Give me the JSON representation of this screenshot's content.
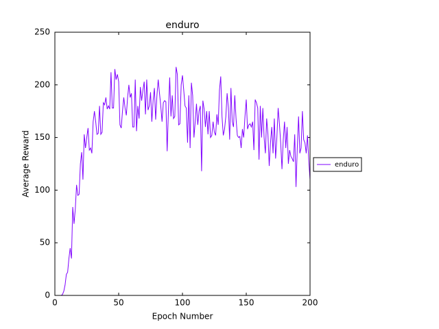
{
  "chart_data": {
    "type": "line",
    "title": "enduro",
    "x_label": "Epoch Number",
    "y_label": "Average Reward",
    "x": [
      0,
      1,
      2,
      3,
      4,
      5,
      6,
      7,
      8,
      9,
      10,
      11,
      12,
      13,
      14,
      15,
      16,
      17,
      18,
      19,
      20,
      21,
      22,
      23,
      24,
      25,
      26,
      27,
      28,
      29,
      30,
      31,
      32,
      33,
      34,
      35,
      36,
      37,
      38,
      39,
      40,
      41,
      42,
      43,
      44,
      45,
      46,
      47,
      48,
      49,
      50,
      51,
      52,
      53,
      54,
      55,
      56,
      57,
      58,
      59,
      60,
      61,
      62,
      63,
      64,
      65,
      66,
      67,
      68,
      69,
      70,
      71,
      72,
      73,
      74,
      75,
      76,
      77,
      78,
      79,
      80,
      81,
      82,
      83,
      84,
      85,
      86,
      87,
      88,
      89,
      90,
      91,
      92,
      93,
      94,
      95,
      96,
      97,
      98,
      99,
      100,
      101,
      102,
      103,
      104,
      105,
      106,
      107,
      108,
      109,
      110,
      111,
      112,
      113,
      114,
      115,
      116,
      117,
      118,
      119,
      120,
      121,
      122,
      123,
      124,
      125,
      126,
      127,
      128,
      129,
      130,
      131,
      132,
      133,
      134,
      135,
      136,
      137,
      138,
      139,
      140,
      141,
      142,
      143,
      144,
      145,
      146,
      147,
      148,
      149,
      150,
      151,
      152,
      153,
      154,
      155,
      156,
      157,
      158,
      159,
      160,
      161,
      162,
      163,
      164,
      165,
      166,
      167,
      168,
      169,
      170,
      171,
      172,
      173,
      174,
      175,
      176,
      177,
      178,
      179,
      180,
      181,
      182,
      183,
      184,
      185,
      186,
      187,
      188,
      189,
      190,
      191,
      192,
      193,
      194,
      195,
      196,
      197,
      198,
      199,
      200
    ],
    "series": [
      {
        "name": "enduro",
        "color": "#7f00ff",
        "values": [
          0,
          0,
          0,
          0,
          0,
          0,
          1,
          4,
          10,
          20,
          22,
          35,
          45,
          35,
          84,
          68,
          82,
          105,
          95,
          96,
          125,
          136,
          110,
          153,
          140,
          150,
          159,
          138,
          140,
          135,
          165,
          175,
          165,
          153,
          154,
          180,
          153,
          155,
          183,
          181,
          188,
          177,
          180,
          177,
          212,
          178,
          178,
          215,
          205,
          210,
          203,
          162,
          159,
          175,
          188,
          178,
          171,
          188,
          200,
          188,
          192,
          160,
          160,
          205,
          156,
          180,
          168,
          198,
          185,
          195,
          203,
          172,
          205,
          176,
          180,
          193,
          165,
          185,
          197,
          167,
          190,
          205,
          192,
          180,
          165,
          183,
          185,
          184,
          137,
          175,
          207,
          170,
          190,
          168,
          170,
          217,
          210,
          162,
          163,
          200,
          209,
          195,
          180,
          178,
          145,
          190,
          140,
          202,
          190,
          150,
          165,
          182,
          162,
          175,
          180,
          118,
          185,
          177,
          160,
          175,
          153,
          175,
          150,
          152,
          165,
          155,
          152,
          172,
          162,
          195,
          208,
          170,
          152,
          158,
          170,
          192,
          178,
          148,
          197,
          165,
          160,
          190,
          168,
          152,
          150,
          151,
          140,
          158,
          150,
          170,
          186,
          158,
          162,
          163,
          160,
          165,
          138,
          186,
          183,
          178,
          129,
          180,
          150,
          178,
          150,
          135,
          168,
          153,
          123,
          145,
          160,
          135,
          168,
          130,
          150,
          178,
          163,
          145,
          120,
          148,
          165,
          140,
          160,
          125,
          138,
          132,
          130,
          127,
          153,
          103,
          140,
          170,
          135,
          140,
          175,
          148,
          145,
          135,
          152,
          128,
          110
        ]
      }
    ],
    "xlim": [
      0,
      200
    ],
    "ylim": [
      0,
      250
    ],
    "xticks": [
      0,
      50,
      100,
      150,
      200
    ],
    "yticks": [
      0,
      50,
      100,
      150,
      200,
      250
    ]
  }
}
